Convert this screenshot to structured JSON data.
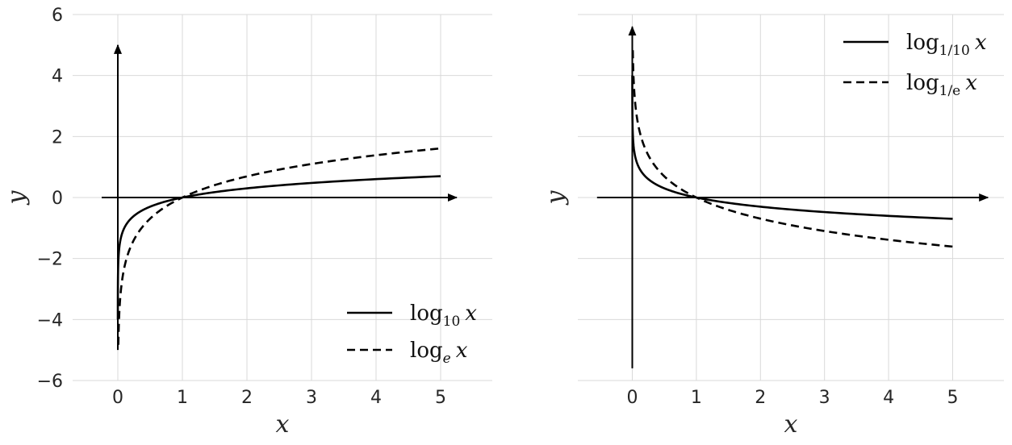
{
  "chart_data": [
    {
      "type": "line",
      "xlabel": "x",
      "ylabel": "y",
      "xlim": [
        -0.7,
        5.8
      ],
      "ylim": [
        -6.0,
        6.0
      ],
      "xticks": [
        "0",
        "1",
        "2",
        "3",
        "4",
        "5"
      ],
      "yticks": [
        "−6",
        "−4",
        "−2",
        "0",
        "2",
        "4",
        "6"
      ],
      "grid": true,
      "legend_position": "lower-right",
      "series": [
        {
          "name": "log10 x",
          "legend_base": "log",
          "legend_sub": "10",
          "legend_var": "x",
          "style": "solid",
          "base": 10,
          "x_range": [
            0.0001,
            5
          ]
        },
        {
          "name": "loge x",
          "legend_base": "log",
          "legend_sub": "e",
          "legend_var": "x",
          "style": "dashed",
          "base": 2.718281828,
          "x_range": [
            0.008,
            5
          ]
        }
      ],
      "arrows": {
        "x_axis": [
          -0.25,
          5.25
        ],
        "y_axis": [
          -5.0,
          5.0
        ]
      }
    },
    {
      "type": "line",
      "xlabel": "x",
      "ylabel": "y",
      "xlim": [
        -0.85,
        5.8
      ],
      "ylim": [
        -6.0,
        6.0
      ],
      "xticks": [
        "0",
        "1",
        "2",
        "3",
        "4",
        "5"
      ],
      "yticks": [],
      "grid": true,
      "legend_position": "top-right",
      "series": [
        {
          "name": "log1/10 x",
          "legend_base": "log",
          "legend_sub": "1/10",
          "legend_var": "x",
          "style": "solid",
          "base": 0.1,
          "x_range": [
            0.0001,
            5
          ]
        },
        {
          "name": "log1/e x",
          "legend_base": "log",
          "legend_sub": "1/e",
          "legend_var": "x",
          "style": "dashed",
          "base": 0.367879441,
          "x_range": [
            0.008,
            5
          ]
        }
      ],
      "arrows": {
        "x_axis": [
          -0.55,
          5.55
        ],
        "y_axis": [
          -5.6,
          5.6
        ]
      }
    }
  ]
}
